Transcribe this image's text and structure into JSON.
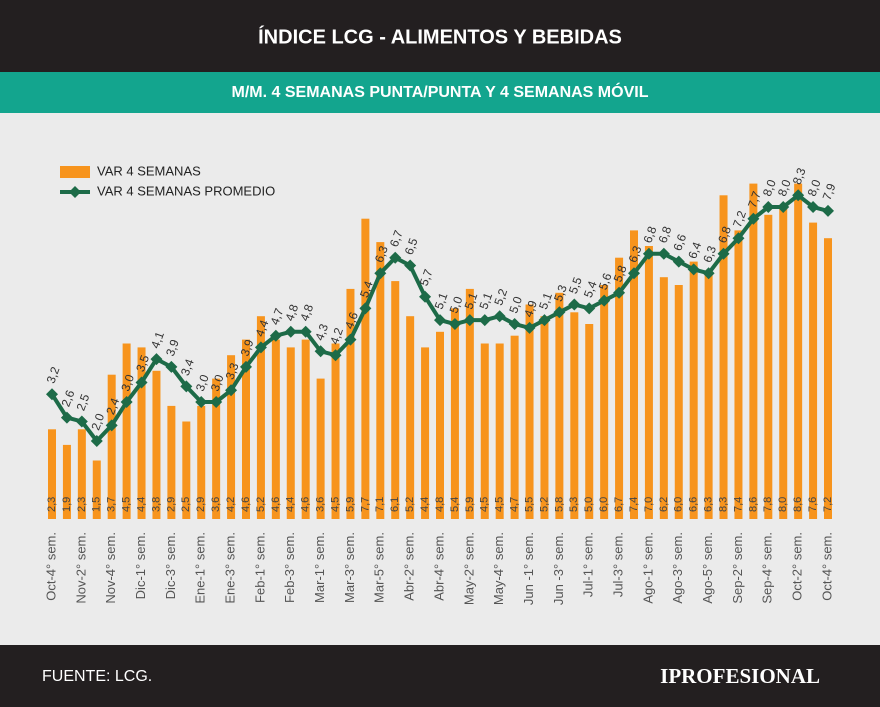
{
  "chart_data": {
    "type": "bar",
    "title": "ÍNDICE LCG - ALIMENTOS Y BEBIDAS",
    "subtitle": "M/M. 4 SEMANAS PUNTA/PUNTA Y 4 SEMANAS MÓVIL",
    "source": "FUENTE: LCG.",
    "brand": "IPROFESIONAL",
    "ylim": [
      0,
      9
    ],
    "categories": [
      "Oct-4° sem.",
      null,
      "Nov-2° sem.",
      null,
      "Nov-4° sem.",
      null,
      "Dic-1° sem.",
      null,
      "Dic-3° sem.",
      null,
      "Ene-1° sem.",
      null,
      "Ene-3° sem.",
      null,
      "Feb-1° sem.",
      null,
      "Feb-3° sem.",
      null,
      "Mar-1° sem.",
      null,
      "Mar-3° sem.",
      null,
      "Mar-5° sem.",
      null,
      "Abr-2° sem.",
      null,
      "Abr-4° sem.",
      null,
      "May-2° sem.",
      null,
      "May-4° sem.",
      null,
      "Jun -1° sem.",
      null,
      "Jun -3° sem.",
      null,
      "Jul-1° sem.",
      null,
      "Jul-3° sem.",
      null,
      "Ago-1° sem.",
      null,
      "Ago-3° sem.",
      null,
      "Ago-5° sem.",
      null,
      "Sep-2° sem.",
      null,
      "Sep-4° sem.",
      null,
      "Oct-2° sem.",
      null,
      "Oct-4° sem."
    ],
    "series": [
      {
        "name": "VAR 4 SEMANAS",
        "type": "bar",
        "color": "#f7941d",
        "values": [
          2.3,
          1.9,
          2.3,
          1.5,
          3.7,
          4.5,
          4.4,
          3.8,
          2.9,
          2.5,
          2.9,
          3.6,
          4.2,
          4.6,
          5.2,
          4.6,
          4.4,
          4.6,
          3.6,
          4.5,
          5.9,
          7.7,
          7.1,
          6.1,
          5.2,
          4.4,
          4.8,
          5.4,
          5.9,
          4.5,
          4.5,
          4.7,
          5.5,
          5.2,
          5.8,
          5.3,
          5.0,
          6.0,
          6.7,
          7.4,
          7.0,
          6.2,
          6.0,
          6.6,
          6.3,
          8.3,
          7.4,
          8.6,
          7.8,
          8.0,
          8.6,
          7.6,
          7.2
        ],
        "value_labels": [
          "2,3",
          "1,9",
          "2,3",
          "1,5",
          "3,7",
          "4,5",
          "4,4",
          "3,8",
          "2,9",
          "2,5",
          "2,9",
          "3,6",
          "4,2",
          "4,6",
          "5,2",
          "4,6",
          "4,4",
          "4,6",
          "3,6",
          "4,5",
          "5,9",
          "7,7",
          "7,1",
          "6,1",
          "5,2",
          "4,4",
          "4,8",
          "5,4",
          "5,9",
          "4,5",
          "4,5",
          "4,7",
          "5,5",
          "5,2",
          "5,8",
          "5,3",
          "5,0",
          "6,0",
          "6,7",
          "7,4",
          "7,0",
          "6,2",
          "6,0",
          "6,6",
          "6,3",
          "8,3",
          "7,4",
          "8,6",
          "7,8",
          "8,0",
          "8,6",
          "7,6",
          "7,2"
        ]
      },
      {
        "name": "VAR 4 SEMANAS PROMEDIO",
        "type": "line",
        "color": "#1d6b48",
        "values": [
          3.2,
          2.6,
          2.5,
          2.0,
          2.4,
          3.0,
          3.5,
          4.1,
          3.9,
          3.4,
          3.0,
          3.0,
          3.3,
          3.9,
          4.4,
          4.7,
          4.8,
          4.8,
          4.3,
          4.2,
          4.6,
          5.4,
          6.3,
          6.7,
          6.5,
          5.7,
          5.1,
          5.0,
          5.1,
          5.1,
          5.2,
          5.0,
          4.9,
          5.1,
          5.3,
          5.5,
          5.4,
          5.6,
          5.8,
          6.3,
          6.8,
          6.8,
          6.6,
          6.4,
          6.3,
          6.8,
          7.2,
          7.7,
          8.0,
          8.0,
          8.3,
          8.0,
          7.9
        ],
        "value_labels": [
          "3,2",
          "2,6",
          "2,5",
          "2,0",
          "2,4",
          "3,0",
          "3,5",
          "4,1",
          "3,9",
          "3,4",
          "3,0",
          "3,0",
          "3,3",
          "3,9",
          "4,4",
          "4,7",
          "4,8",
          "4,8",
          "4,3",
          "4,2",
          "4,6",
          "5,4",
          "6,3",
          "6,7",
          "6,5",
          "5,7",
          "5,1",
          "5,0",
          "5,1",
          "5,1",
          "5,2",
          "5,0",
          "4,9",
          "5,1",
          "5,3",
          "5,5",
          "5,4",
          "5,6",
          "5,8",
          "6,3",
          "6,8",
          "6,8",
          "6,6",
          "6,4",
          "6,3",
          "6,8",
          "7,2",
          "7,7",
          "8,0",
          "8,0",
          "8,3",
          "8,0",
          "7,9"
        ]
      }
    ]
  }
}
